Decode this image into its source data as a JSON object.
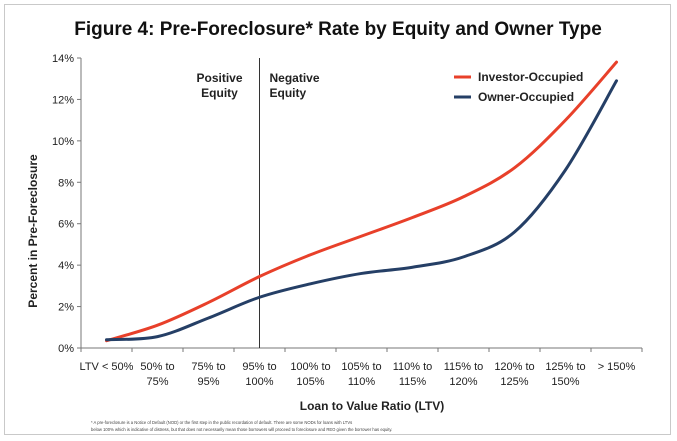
{
  "chart_data": {
    "type": "line",
    "title": "Figure 4:  Pre-Foreclosure* Rate by Equity and Owner Type",
    "xlabel": "Loan to Value Ratio (LTV)",
    "ylabel": "Percent in Pre-Foreclosure",
    "categories": [
      [
        "LTV < 50%"
      ],
      [
        "50% to",
        "75%"
      ],
      [
        "75% to",
        "95%"
      ],
      [
        "95% to",
        "100%"
      ],
      [
        "100% to",
        "105%"
      ],
      [
        "105% to",
        "110%"
      ],
      [
        "110% to",
        "115%"
      ],
      [
        "115% to",
        "120%"
      ],
      [
        "120% to",
        "125%"
      ],
      [
        "125% to",
        "150%"
      ],
      [
        "> 150%"
      ]
    ],
    "ylim": [
      0,
      14
    ],
    "yticks": [
      0,
      2,
      4,
      6,
      8,
      10,
      12,
      14
    ],
    "ytick_labels": [
      "0%",
      "2%",
      "4%",
      "6%",
      "8%",
      "10%",
      "12%",
      "14%"
    ],
    "grid": false,
    "legend_position": "top-right",
    "series": [
      {
        "name": "Investor-Occupied",
        "color": "#e8402a",
        "values": [
          0.35,
          1.1,
          2.2,
          3.45,
          4.5,
          5.4,
          6.3,
          7.3,
          8.7,
          11.0,
          13.8
        ]
      },
      {
        "name": "Owner-Occupied",
        "color": "#253f66",
        "values": [
          0.4,
          0.55,
          1.45,
          2.45,
          3.1,
          3.6,
          3.9,
          4.4,
          5.6,
          8.6,
          12.9
        ]
      }
    ],
    "annotations": {
      "divider_position": 3.5,
      "left_label": [
        "Positive",
        "Equity"
      ],
      "right_label": [
        "Negative",
        "Equity"
      ]
    },
    "footnote": [
      "* A pre-foreclosure is a Notice of Default (NOD) or the first step in the public recordation of default.  There are some NODs for loans with LTVs",
      "below 100% which is indicative of distress, but that does not necessarily mean those borrowers will proceed to foreclosure and REO given the borrower has equity."
    ]
  }
}
